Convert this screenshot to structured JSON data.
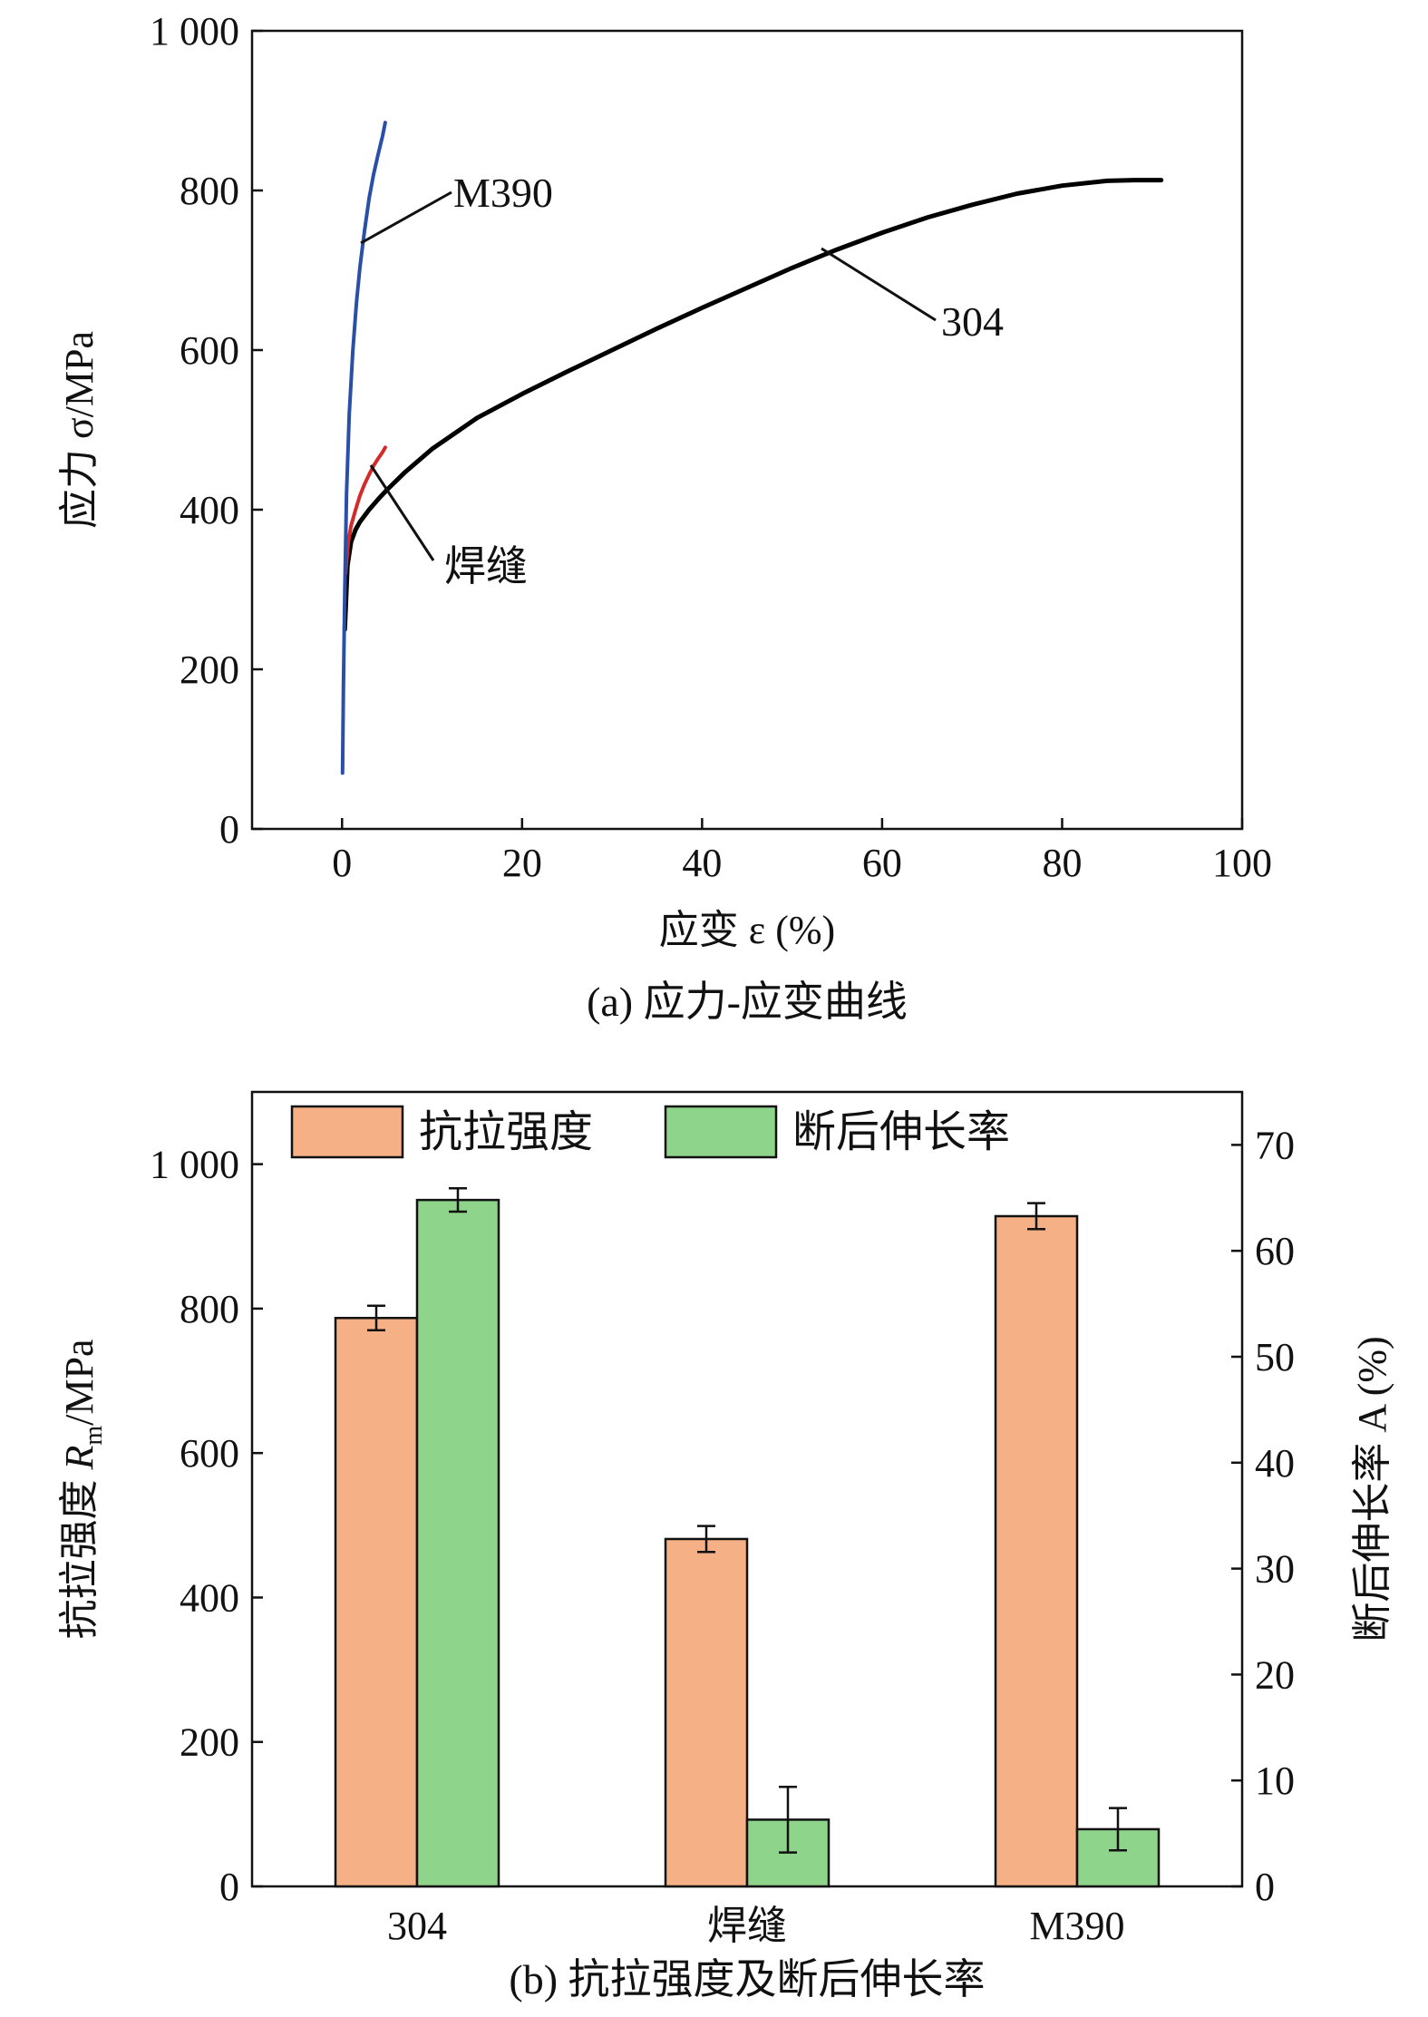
{
  "chart_data": [
    {
      "type": "line",
      "xlabel": "应变 ε (%)",
      "ylabel": "应力 σ/MPa",
      "caption": "(a) 应力-应变曲线",
      "xlim": [
        -10,
        100
      ],
      "ylim": [
        0,
        1000
      ],
      "xticks": [
        0,
        20,
        40,
        60,
        80,
        100
      ],
      "xtick_labels": [
        "0",
        "20",
        "40",
        "60",
        "80",
        "100"
      ],
      "yticks": [
        0,
        200,
        400,
        600,
        800,
        1000
      ],
      "ytick_labels": [
        "0",
        "200",
        "400",
        "600",
        "800",
        "1 000"
      ],
      "grid": false,
      "series": [
        {
          "name": "M390",
          "color": "#2a4fa8",
          "x": [
            0.05,
            0.15,
            0.3,
            0.5,
            0.8,
            1.2,
            1.6,
            2.0,
            2.5,
            3.0,
            3.5,
            4.0,
            4.5,
            4.8
          ],
          "y": [
            70,
            180,
            300,
            420,
            520,
            600,
            660,
            705,
            750,
            790,
            820,
            845,
            868,
            885
          ]
        },
        {
          "name": "焊缝",
          "color": "#d42a2a",
          "x": [
            0.4,
            0.7,
            1.0,
            1.5,
            2.0,
            2.5,
            3.0,
            3.5,
            4.0,
            4.5,
            4.8
          ],
          "y": [
            320,
            360,
            380,
            400,
            418,
            432,
            444,
            455,
            464,
            472,
            478
          ]
        },
        {
          "name": "304",
          "color": "#000000",
          "x": [
            0.3,
            0.6,
            1.0,
            1.5,
            2,
            3,
            4,
            5,
            7,
            10,
            15,
            20,
            25,
            30,
            35,
            40,
            45,
            50,
            55,
            60,
            65,
            70,
            75,
            80,
            85,
            88,
            90,
            91
          ],
          "y": [
            250,
            330,
            360,
            375,
            385,
            400,
            413,
            425,
            447,
            476,
            515,
            545,
            573,
            600,
            627,
            653,
            678,
            703,
            726,
            747,
            766,
            782,
            796,
            806,
            812,
            813,
            813,
            813
          ]
        }
      ],
      "annotations": [
        "M390",
        "304",
        "焊缝"
      ]
    },
    {
      "type": "bar",
      "caption": "(b) 抗拉强度及断后伸长率",
      "categories": [
        "304",
        "焊缝",
        "M390"
      ],
      "ylabel_left": "抗拉强度 Rm/MPa",
      "ylabel_right": "断后伸长率 A (%)",
      "ylim_left": [
        0,
        1100
      ],
      "ylim_right": [
        0,
        75
      ],
      "yticks_left": [
        0,
        200,
        400,
        600,
        800,
        1000
      ],
      "ytick_labels_left": [
        "0",
        "200",
        "400",
        "600",
        "800",
        "1 000"
      ],
      "yticks_right": [
        0,
        10,
        20,
        30,
        40,
        50,
        60,
        70
      ],
      "ytick_labels_right": [
        "0",
        "10",
        "20",
        "30",
        "40",
        "50",
        "60",
        "70"
      ],
      "legend_position": "top",
      "series": [
        {
          "name": "抗拉强度",
          "axis": "left",
          "color": "#f5b185",
          "values": [
            787,
            481,
            928
          ],
          "errors": [
            17,
            18,
            18
          ]
        },
        {
          "name": "断后伸长率",
          "axis": "right",
          "color": "#8fd48b",
          "values": [
            64.8,
            6.3,
            5.4
          ],
          "errors": [
            1.1,
            3.1,
            2.0
          ]
        }
      ]
    }
  ]
}
